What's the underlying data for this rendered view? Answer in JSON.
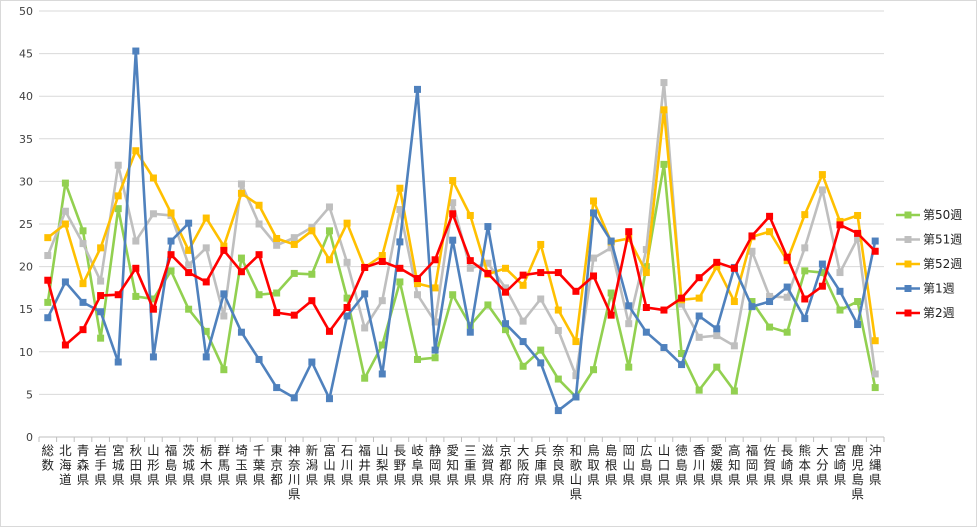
{
  "chart_data": {
    "type": "line",
    "title": "",
    "xlabel": "",
    "ylabel": "",
    "ylim": [
      0,
      50
    ],
    "yticks": [
      0,
      5,
      10,
      15,
      20,
      25,
      30,
      35,
      40,
      45,
      50
    ],
    "grid": "horizontal",
    "legend_position": "right",
    "categories": [
      "総数",
      "北海道",
      "青森県",
      "岩手県",
      "宮城県",
      "秋田県",
      "山形県",
      "福島県",
      "茨城県",
      "栃木県",
      "群馬県",
      "埼玉県",
      "千葉県",
      "東京都",
      "神奈川県",
      "新潟県",
      "富山県",
      "石川県",
      "福井県",
      "山梨県",
      "長野県",
      "岐阜県",
      "静岡県",
      "愛知県",
      "三重県",
      "滋賀県",
      "京都府",
      "大阪府",
      "兵庫県",
      "奈良県",
      "和歌山県",
      "鳥取県",
      "島根県",
      "岡山県",
      "広島県",
      "山口県",
      "徳島県",
      "香川県",
      "愛媛県",
      "高知県",
      "福岡県",
      "佐賀県",
      "長崎県",
      "熊本県",
      "大分県",
      "宮崎県",
      "鹿児島県",
      "沖縄県"
    ],
    "series": [
      {
        "name": "第50週",
        "color": "#92d050",
        "marker": "square",
        "values": [
          15.8,
          29.8,
          24.2,
          11.6,
          26.8,
          16.5,
          16.2,
          19.5,
          15.0,
          12.4,
          7.9,
          21.0,
          16.7,
          16.9,
          19.2,
          19.1,
          24.2,
          16.3,
          6.9,
          10.8,
          18.2,
          9.1,
          9.3,
          16.7,
          13.1,
          15.5,
          12.6,
          8.3,
          10.2,
          6.8,
          4.7,
          7.9,
          16.9,
          8.2,
          20.0,
          32.0,
          9.8,
          5.5,
          8.2,
          5.4,
          15.9,
          12.9,
          12.3,
          19.5,
          19.3,
          14.9,
          15.9,
          5.8
        ]
      },
      {
        "name": "第51週",
        "color": "#bfbfbf",
        "marker": "square",
        "values": [
          21.3,
          26.5,
          22.7,
          18.3,
          31.9,
          23.0,
          26.2,
          26.0,
          20.2,
          22.2,
          14.2,
          29.7,
          25.0,
          22.5,
          23.4,
          24.6,
          27.0,
          20.5,
          12.8,
          16.0,
          26.7,
          16.7,
          13.5,
          27.5,
          19.8,
          20.4,
          17.5,
          13.6,
          16.2,
          12.5,
          7.2,
          21.0,
          22.2,
          13.3,
          22.0,
          41.6,
          15.6,
          11.7,
          11.9,
          10.7,
          21.8,
          16.5,
          16.4,
          22.2,
          29.0,
          19.3,
          23.3,
          7.4
        ]
      },
      {
        "name": "第52週",
        "color": "#ffc000",
        "marker": "square",
        "values": [
          23.4,
          25.0,
          18.0,
          22.2,
          28.3,
          33.6,
          30.4,
          26.3,
          21.9,
          25.7,
          22.4,
          28.6,
          27.2,
          23.3,
          22.6,
          24.2,
          20.8,
          25.1,
          19.9,
          21.3,
          29.2,
          18.0,
          17.5,
          30.1,
          26.0,
          19.1,
          19.8,
          17.8,
          22.6,
          14.9,
          11.2,
          27.7,
          22.9,
          23.3,
          19.3,
          38.4,
          16.1,
          16.3,
          20.0,
          15.9,
          23.5,
          24.1,
          20.7,
          26.1,
          30.8,
          25.3,
          26.0,
          11.3
        ]
      },
      {
        "name": "第1週",
        "color": "#4f81bd",
        "marker": "square",
        "values": [
          14.0,
          18.2,
          15.8,
          14.7,
          8.8,
          45.3,
          9.4,
          23.0,
          25.1,
          9.4,
          16.8,
          12.3,
          9.1,
          5.8,
          4.6,
          8.8,
          4.5,
          14.2,
          16.8,
          7.4,
          22.9,
          40.8,
          10.2,
          23.1,
          12.3,
          24.7,
          13.3,
          11.2,
          8.7,
          3.1,
          4.7,
          26.3,
          23.0,
          15.4,
          12.3,
          10.5,
          8.5,
          14.2,
          12.7,
          19.9,
          15.3,
          15.9,
          17.6,
          13.9,
          20.3,
          17.1,
          13.2,
          23.0
        ]
      },
      {
        "name": "第2週",
        "color": "#ff0000",
        "marker": "square",
        "values": [
          18.4,
          10.8,
          12.6,
          16.6,
          16.7,
          19.8,
          15.0,
          21.4,
          19.3,
          18.2,
          21.9,
          19.4,
          21.4,
          14.6,
          14.3,
          16.0,
          12.4,
          15.2,
          19.9,
          20.6,
          19.8,
          18.6,
          20.8,
          26.2,
          20.7,
          19.2,
          17.0,
          19.0,
          19.3,
          19.3,
          17.1,
          18.9,
          14.3,
          24.1,
          15.2,
          14.9,
          16.3,
          18.7,
          20.5,
          19.8,
          23.6,
          25.9,
          21.1,
          16.2,
          17.7,
          24.9,
          23.9,
          21.8
        ]
      }
    ]
  }
}
